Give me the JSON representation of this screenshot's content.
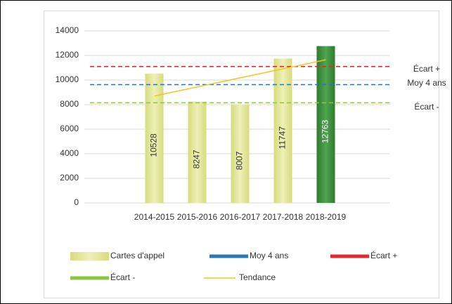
{
  "chart_data": {
    "type": "bar",
    "categories": [
      null,
      "2014-2015",
      "2015-2016",
      "2016-2017",
      "2017-2018",
      "2018-2019",
      null
    ],
    "series": [
      {
        "name": "Cartes d'appel",
        "values": [
          null,
          10528,
          8247,
          8007,
          11747,
          12763,
          null
        ],
        "colors": [
          null,
          "#e2e79c",
          "#e2e79c",
          "#e2e79c",
          "#e2e79c",
          "#3f8f3f",
          null
        ],
        "label_colors": [
          null,
          "#333333",
          "#333333",
          "#333333",
          "#333333",
          "#ffffff",
          null
        ]
      },
      {
        "name": "Moy 4 ans",
        "type": "hline",
        "value": 9632,
        "color": "#2e75b6"
      },
      {
        "name": "Écart +",
        "type": "hline",
        "value": 11100,
        "color": "#e0282e"
      },
      {
        "name": "Écart -",
        "type": "hline",
        "value": 8150,
        "color": "#8cc63f"
      },
      {
        "name": "Tendance",
        "type": "line",
        "values": [
          null,
          8700,
          9440,
          10180,
          10910,
          11650,
          null
        ],
        "color": "#f5c518"
      }
    ],
    "annotations": [
      "Écart +",
      "Moy 4 ans",
      "Écart -"
    ],
    "ylim": [
      0,
      14000
    ],
    "yticks": [
      0,
      2000,
      4000,
      6000,
      8000,
      10000,
      12000,
      14000
    ],
    "grid": true
  }
}
